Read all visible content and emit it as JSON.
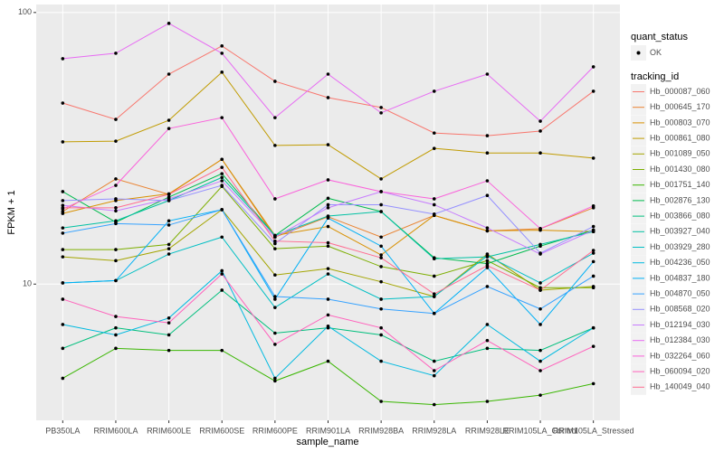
{
  "chart_data": {
    "type": "line",
    "x_label": "sample_name",
    "y_label": "FPKM + 1",
    "log_y": true,
    "grid": true,
    "shape_legend_title": "quant_status",
    "shape_legend_labels": [
      "OK"
    ],
    "color_legend_title": "tracking_id",
    "categories": [
      "PB350LA",
      "RRIM600LA",
      "RRIM600LE",
      "RRIM600SE",
      "RRIM600PE",
      "RRIM901LA",
      "RRIM928BA",
      "RRIM928LA",
      "RRIM928LE",
      "RRIM105LA_Control",
      "RRIM105LA_Stressed"
    ],
    "ylim": [
      3.15,
      107
    ],
    "yticks": [
      10,
      100
    ],
    "series": [
      {
        "name": "Hb_000087_060",
        "color": "#F8766D",
        "values": [
          46.4,
          40.4,
          59.3,
          75.3,
          55.8,
          48.6,
          44.7,
          36.0,
          35.2,
          36.6,
          51.3
        ]
      },
      {
        "name": "Hb_000645_170",
        "color": "#EA8331",
        "values": [
          18.5,
          24.4,
          21.4,
          28.8,
          14.9,
          17.7,
          14.9,
          17.9,
          15.7,
          16.0,
          19.1
        ]
      },
      {
        "name": "Hb_000803_070",
        "color": "#D89000",
        "values": [
          18.2,
          20.3,
          21.5,
          28.8,
          15.1,
          16.3,
          12.8,
          17.9,
          15.7,
          15.8,
          15.6
        ]
      },
      {
        "name": "Hb_000861_080",
        "color": "#C09B00",
        "values": [
          33.4,
          33.6,
          40.1,
          60.3,
          32.4,
          32.6,
          24.4,
          31.6,
          30.4,
          30.4,
          29.1
        ]
      },
      {
        "name": "Hb_001089_050",
        "color": "#A3A500",
        "values": [
          12.6,
          12.2,
          13.5,
          18.8,
          10.8,
          11.4,
          10.2,
          9.0,
          12.9,
          9.5,
          9.8
        ]
      },
      {
        "name": "Hb_001430_080",
        "color": "#7CAE00",
        "values": [
          13.4,
          13.4,
          14.0,
          22.9,
          13.5,
          13.8,
          11.6,
          10.7,
          12.2,
          9.7,
          9.7
        ]
      },
      {
        "name": "Hb_001751_140",
        "color": "#39B600",
        "values": [
          4.5,
          5.8,
          5.7,
          5.7,
          4.4,
          5.2,
          3.7,
          3.6,
          3.7,
          3.9,
          4.3
        ]
      },
      {
        "name": "Hb_002876_130",
        "color": "#00BB4E",
        "values": [
          21.9,
          16.9,
          20.9,
          25.5,
          15.1,
          20.7,
          18.5,
          12.5,
          11.9,
          13.8,
          15.8
        ]
      },
      {
        "name": "Hb_003866_080",
        "color": "#00BF7D",
        "values": [
          5.8,
          6.9,
          6.5,
          9.5,
          6.6,
          6.9,
          6.5,
          5.2,
          5.8,
          5.7,
          6.9
        ]
      },
      {
        "name": "Hb_003927_040",
        "color": "#00C1A3",
        "values": [
          16.1,
          17.1,
          20.3,
          24.7,
          15.1,
          17.8,
          18.5,
          12.4,
          12.6,
          14.0,
          15.6
        ]
      },
      {
        "name": "Hb_003929_280",
        "color": "#00BFC4",
        "values": [
          10.1,
          10.3,
          12.9,
          14.9,
          8.2,
          10.9,
          8.8,
          9.0,
          12.7,
          10.1,
          13.0
        ]
      },
      {
        "name": "Hb_004236_050",
        "color": "#00BAE0",
        "values": [
          7.1,
          6.5,
          7.5,
          11.2,
          4.5,
          7.0,
          5.2,
          4.6,
          7.1,
          5.2,
          6.9
        ]
      },
      {
        "name": "Hb_004837_180",
        "color": "#00B0F6",
        "values": [
          10.1,
          10.3,
          17.1,
          18.8,
          8.8,
          17.5,
          13.8,
          7.8,
          11.5,
          7.1,
          12.1
        ]
      },
      {
        "name": "Hb_004870_050",
        "color": "#35A2FF",
        "values": [
          15.4,
          16.7,
          16.5,
          18.8,
          9.0,
          8.8,
          8.1,
          7.8,
          9.8,
          8.1,
          10.7
        ]
      },
      {
        "name": "Hb_008568_020",
        "color": "#9590FF",
        "values": [
          20.3,
          20.6,
          20.3,
          23.1,
          14.1,
          19.6,
          19.6,
          18.1,
          21.2,
          13.0,
          16.3
        ]
      },
      {
        "name": "Hb_012194_030",
        "color": "#C77CFF",
        "values": [
          19.5,
          18.6,
          20.6,
          24.0,
          14.9,
          19.1,
          21.9,
          19.6,
          16.1,
          12.9,
          15.8
        ]
      },
      {
        "name": "Hb_012384_030",
        "color": "#E76BF3",
        "values": [
          67.6,
          70.8,
          91.2,
          70.8,
          41.0,
          59.3,
          42.7,
          51.3,
          59.3,
          39.8,
          63.1
        ]
      },
      {
        "name": "Hb_032264_060",
        "color": "#FA62DB",
        "values": [
          18.9,
          23.1,
          37.4,
          41.0,
          20.6,
          24.2,
          21.9,
          20.6,
          24.0,
          16.0,
          19.4
        ]
      },
      {
        "name": "Hb_060094_020",
        "color": "#FF62BC",
        "values": [
          8.8,
          7.6,
          7.2,
          10.9,
          6.0,
          7.7,
          6.9,
          4.8,
          6.2,
          4.8,
          5.9
        ]
      },
      {
        "name": "Hb_140049_040",
        "color": "#FF6C91",
        "values": [
          19.1,
          19.1,
          21.4,
          26.9,
          14.4,
          14.2,
          12.5,
          9.2,
          11.7,
          9.5,
          13.3
        ]
      }
    ]
  }
}
